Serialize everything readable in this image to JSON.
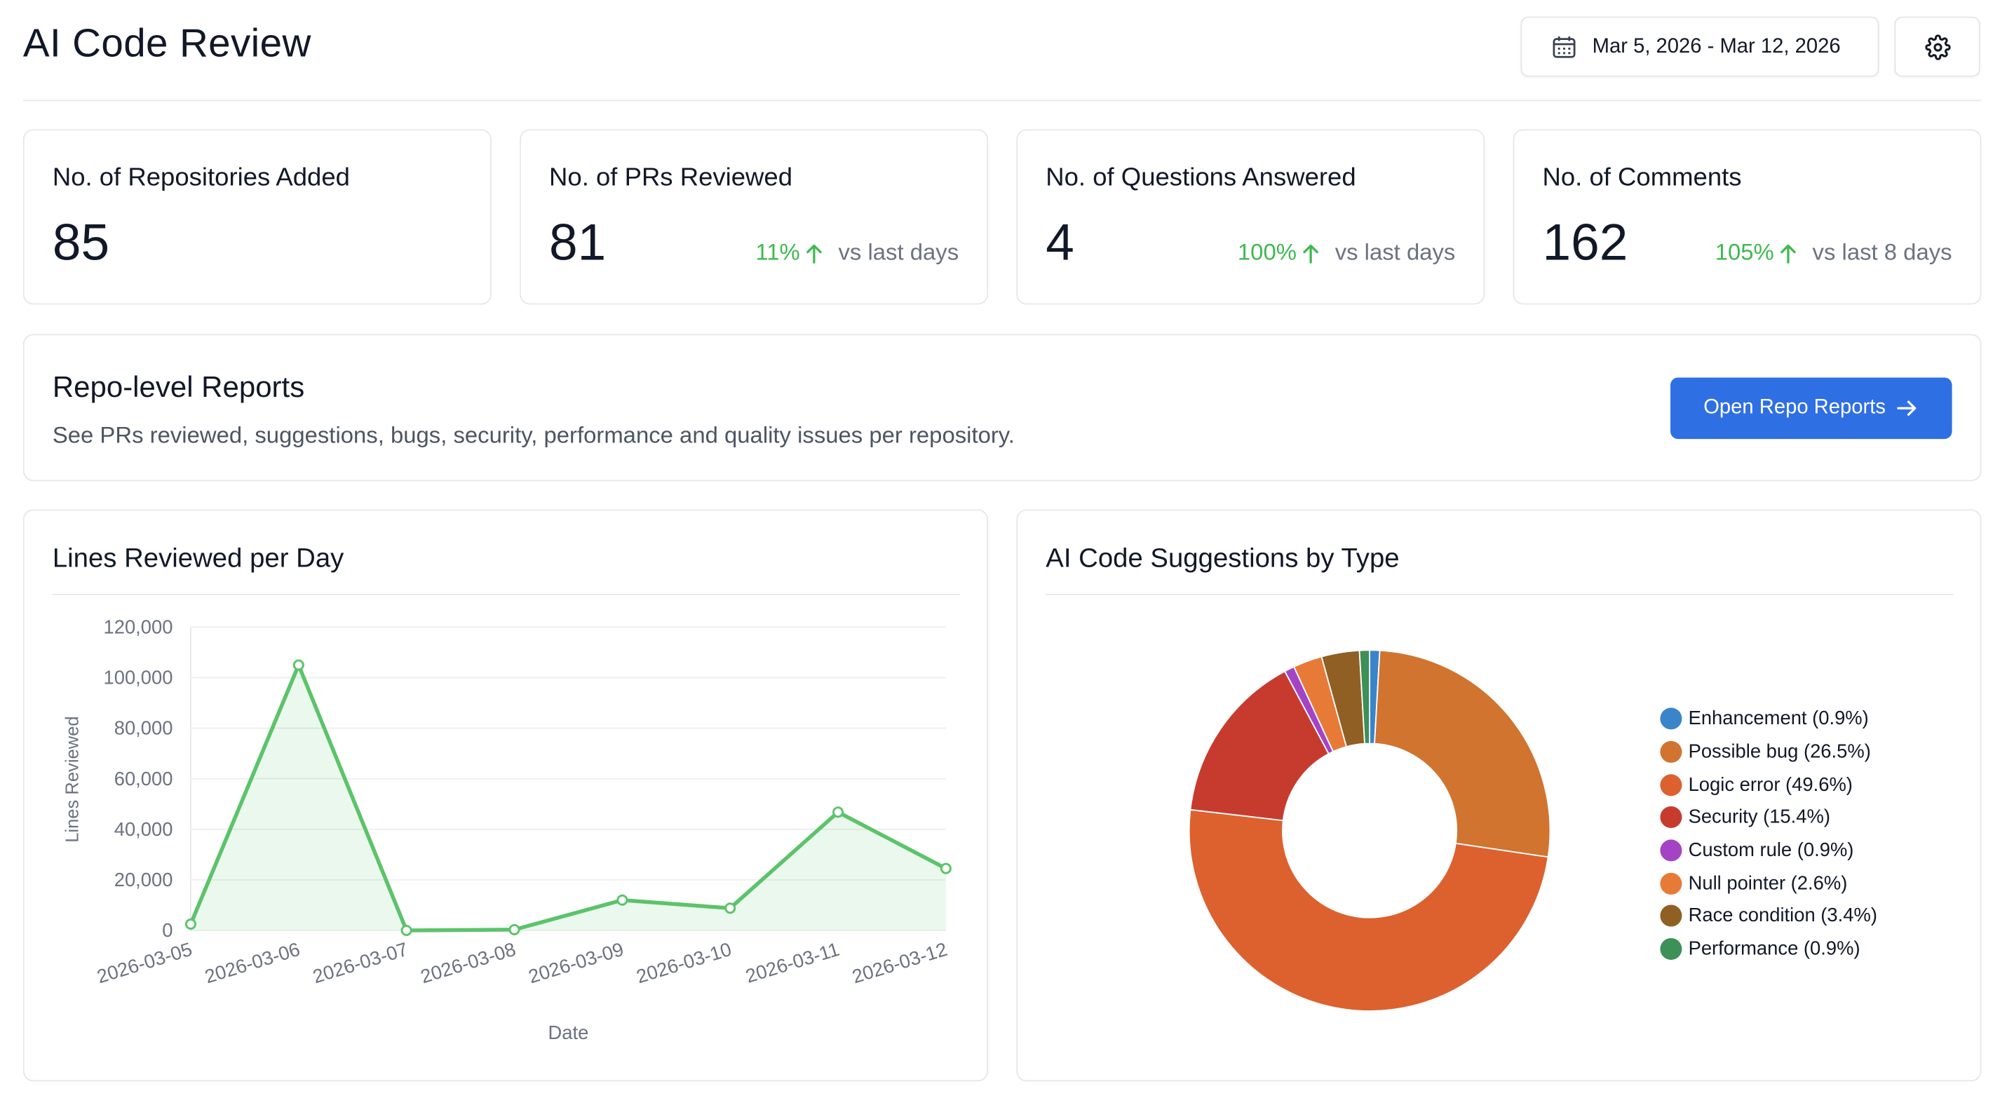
{
  "header": {
    "title": "AI Code Review",
    "date_range": "Mar 5, 2026 - Mar 12, 2026"
  },
  "stats": [
    {
      "label": "No. of Repositories Added",
      "value": "85",
      "pct": "",
      "compare": ""
    },
    {
      "label": "No. of PRs Reviewed",
      "value": "81",
      "pct": "11%",
      "compare": "vs last days"
    },
    {
      "label": "No. of Questions Answered",
      "value": "4",
      "pct": "100%",
      "compare": "vs last days"
    },
    {
      "label": "No. of Comments",
      "value": "162",
      "pct": "105%",
      "compare": "vs last 8 days"
    }
  ],
  "repo_reports": {
    "title": "Repo-level Reports",
    "description": "See PRs reviewed, suggestions, bugs, security, performance and quality issues per repository.",
    "button_label": "Open Repo Reports"
  },
  "colors": {
    "accent": "#2f6fe4",
    "positive": "#3fb950",
    "line": "#5cc36a"
  },
  "chart_data": [
    {
      "type": "line",
      "title": "Lines Reviewed per Day",
      "xlabel": "Date",
      "ylabel": "Lines Reviewed",
      "categories": [
        "2026-03-05",
        "2026-03-06",
        "2026-03-07",
        "2026-03-08",
        "2026-03-09",
        "2026-03-10",
        "2026-03-11",
        "2026-03-12"
      ],
      "values": [
        2500,
        105000,
        0,
        300,
        12000,
        8800,
        46800,
        24500
      ],
      "ylim": [
        0,
        120000
      ],
      "yticks": [
        "0",
        "20,000",
        "40,000",
        "60,000",
        "80,000",
        "100,000",
        "120,000"
      ],
      "grid": true,
      "fill": true
    },
    {
      "type": "pie",
      "title": "AI Code Suggestions by Type",
      "legend_position": "right",
      "labels": [
        "Enhancement",
        "Possible bug",
        "Logic error",
        "Security",
        "Custom rule",
        "Null pointer",
        "Race condition",
        "Performance"
      ],
      "legend_labels": [
        "Enhancement (0.9%)",
        "Possible bug (26.5%)",
        "Logic error (49.6%)",
        "Security (15.4%)",
        "Custom rule (0.9%)",
        "Null pointer (2.6%)",
        "Race condition (3.4%)",
        "Performance (0.9%)"
      ],
      "values": [
        0.9,
        26.5,
        49.6,
        15.4,
        0.9,
        2.6,
        3.4,
        0.9
      ],
      "colors": [
        "#3a85c9",
        "#d07430",
        "#dc612f",
        "#c73b2f",
        "#a444c4",
        "#e87a38",
        "#8f5f24",
        "#3c9058"
      ]
    }
  ]
}
